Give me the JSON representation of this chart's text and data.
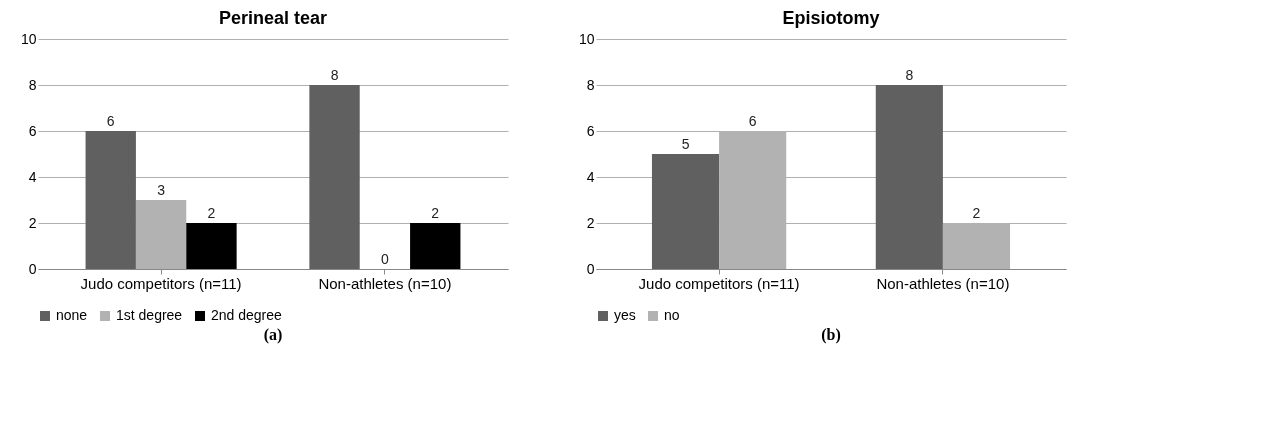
{
  "chart_data": [
    {
      "type": "bar",
      "title": "Perineal tear",
      "categories": [
        "Judo competitors (n=11)",
        "Non-athletes (n=10)"
      ],
      "series": [
        {
          "name": "none",
          "color": "#606060",
          "values": [
            6,
            8
          ]
        },
        {
          "name": "1st degree",
          "color": "#b2b2b2",
          "values": [
            3,
            0
          ]
        },
        {
          "name": "2nd degree",
          "color": "#000000",
          "values": [
            2,
            2
          ]
        }
      ],
      "ylim": [
        0,
        10
      ],
      "yticks": [
        0,
        2,
        4,
        6,
        8,
        10
      ],
      "grid": "y",
      "legend": "bottom",
      "data_labels": true,
      "annotations": [
        "(a)"
      ]
    },
    {
      "type": "bar",
      "title": "Episiotomy",
      "categories": [
        "Judo competitors (n=11)",
        "Non-athletes (n=10)"
      ],
      "series": [
        {
          "name": "yes",
          "color": "#606060",
          "values": [
            5,
            8
          ]
        },
        {
          "name": "no",
          "color": "#b2b2b2",
          "values": [
            6,
            2
          ]
        }
      ],
      "ylim": [
        0,
        10
      ],
      "yticks": [
        0,
        2,
        4,
        6,
        8,
        10
      ],
      "grid": "y",
      "legend": "bottom",
      "data_labels": true,
      "annotations": [
        "(b)"
      ]
    }
  ]
}
